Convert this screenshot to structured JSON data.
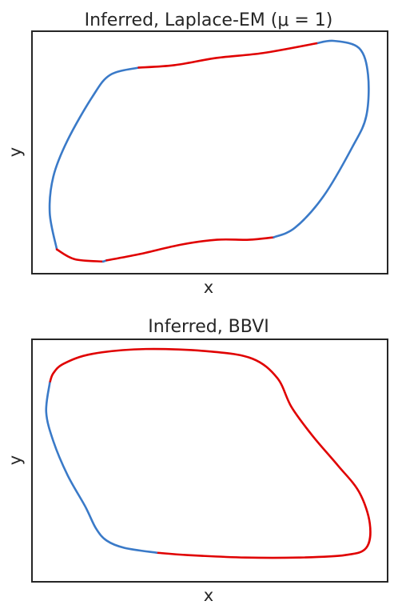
{
  "chart_data": [
    {
      "type": "line",
      "title": "Inferred, Laplace-EM (μ = 1)",
      "xlabel": "x",
      "ylabel": "y",
      "xlim": [
        0,
        1
      ],
      "ylim": [
        0,
        1
      ],
      "xticks": [],
      "yticks": [],
      "grid": false,
      "series": [
        {
          "color": "#3a7ac8",
          "points": [
            [
              0.3,
              0.85
            ],
            [
              0.22,
              0.82
            ],
            [
              0.17,
              0.73
            ],
            [
              0.1,
              0.55
            ],
            [
              0.06,
              0.4
            ],
            [
              0.05,
              0.25
            ],
            [
              0.07,
              0.1
            ]
          ]
        },
        {
          "color": "#e00000",
          "points": [
            [
              0.07,
              0.1
            ],
            [
              0.12,
              0.06
            ],
            [
              0.2,
              0.05
            ]
          ]
        },
        {
          "color": "#3a7ac8",
          "points": [
            [
              0.2,
              0.05
            ],
            [
              0.21,
              0.055
            ]
          ]
        },
        {
          "color": "#e00000",
          "points": [
            [
              0.21,
              0.055
            ],
            [
              0.3,
              0.08
            ],
            [
              0.42,
              0.12
            ],
            [
              0.52,
              0.14
            ],
            [
              0.61,
              0.14
            ],
            [
              0.68,
              0.15
            ]
          ]
        },
        {
          "color": "#3a7ac8",
          "points": [
            [
              0.68,
              0.15
            ],
            [
              0.74,
              0.19
            ],
            [
              0.82,
              0.32
            ],
            [
              0.9,
              0.52
            ],
            [
              0.94,
              0.65
            ],
            [
              0.945,
              0.82
            ],
            [
              0.92,
              0.93
            ],
            [
              0.85,
              0.96
            ],
            [
              0.8,
              0.95
            ]
          ]
        },
        {
          "color": "#e00000",
          "points": [
            [
              0.8,
              0.95
            ],
            [
              0.65,
              0.91
            ],
            [
              0.52,
              0.89
            ],
            [
              0.4,
              0.86
            ],
            [
              0.3,
              0.85
            ]
          ]
        }
      ]
    },
    {
      "type": "line",
      "title": "Inferred, BBVI",
      "xlabel": "x",
      "ylabel": "y",
      "xlim": [
        0,
        1
      ],
      "ylim": [
        0,
        1
      ],
      "xticks": [],
      "yticks": [],
      "grid": false,
      "series": [
        {
          "color": "#e00000",
          "points": [
            [
              0.05,
              0.82
            ],
            [
              0.06,
              0.86
            ],
            [
              0.09,
              0.9
            ],
            [
              0.17,
              0.94
            ],
            [
              0.32,
              0.96
            ],
            [
              0.5,
              0.95
            ],
            [
              0.62,
              0.92
            ],
            [
              0.69,
              0.84
            ],
            [
              0.73,
              0.72
            ],
            [
              0.79,
              0.6
            ],
            [
              0.86,
              0.48
            ],
            [
              0.92,
              0.37
            ],
            [
              0.95,
              0.24
            ],
            [
              0.94,
              0.14
            ],
            [
              0.88,
              0.11
            ],
            [
              0.75,
              0.1
            ],
            [
              0.6,
              0.1
            ],
            [
              0.44,
              0.11
            ],
            [
              0.35,
              0.12
            ]
          ]
        },
        {
          "color": "#3a7ac8",
          "points": [
            [
              0.35,
              0.12
            ],
            [
              0.26,
              0.14
            ],
            [
              0.21,
              0.17
            ],
            [
              0.18,
              0.22
            ],
            [
              0.15,
              0.31
            ],
            [
              0.1,
              0.44
            ],
            [
              0.06,
              0.58
            ],
            [
              0.04,
              0.7
            ],
            [
              0.05,
              0.82
            ]
          ]
        }
      ]
    }
  ]
}
